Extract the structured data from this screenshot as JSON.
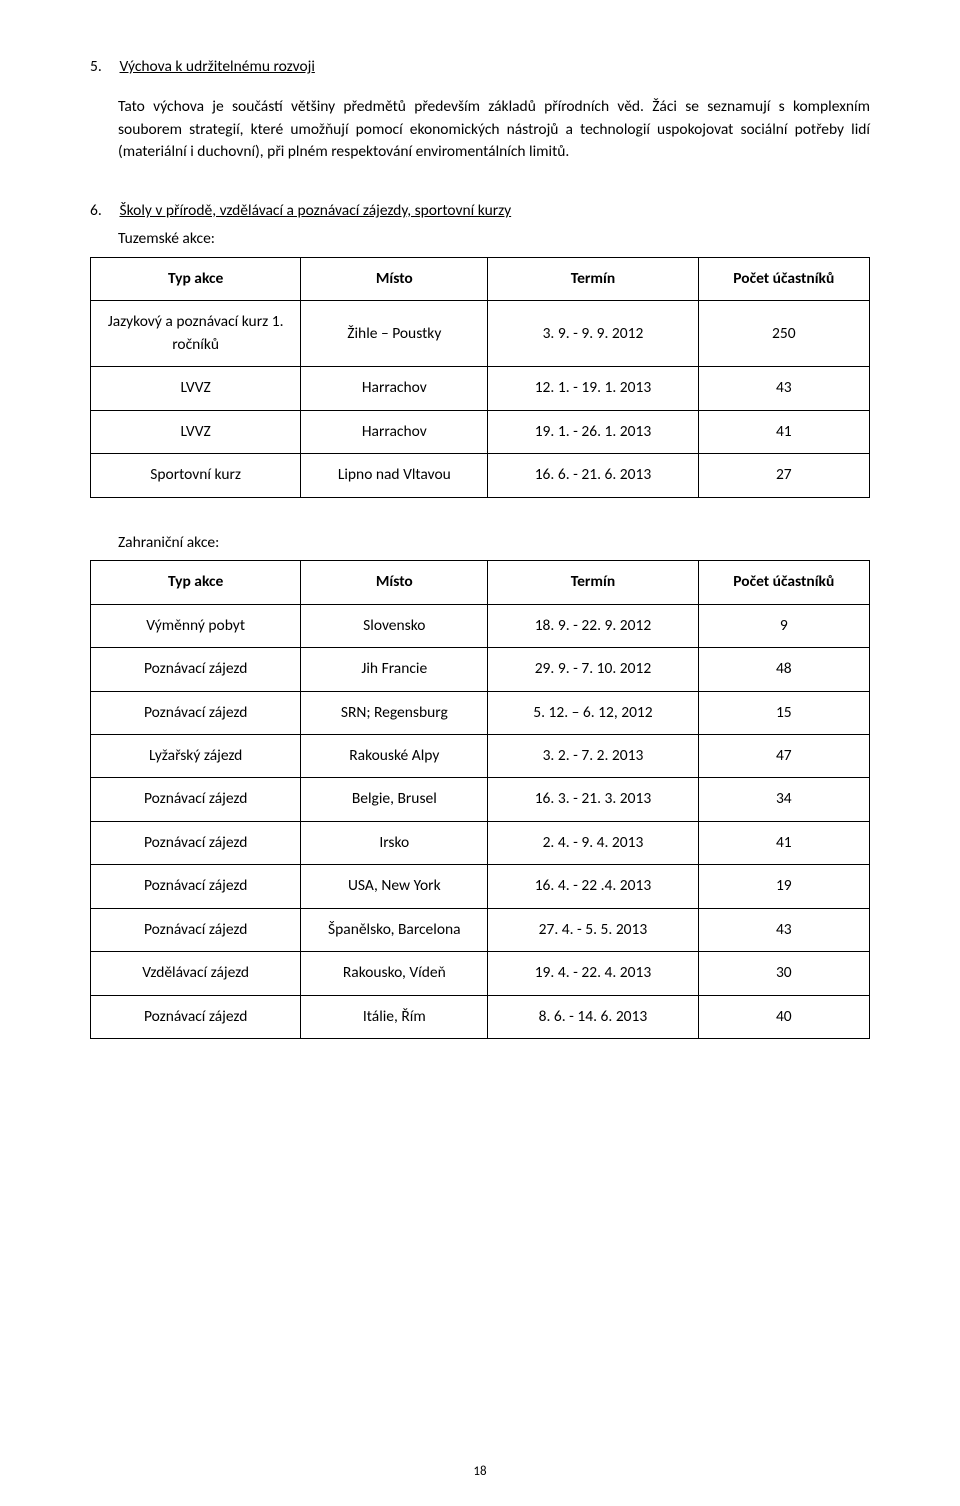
{
  "section5": {
    "num": "5.",
    "title": "Výchova k udržitelnému rozvoji",
    "para": "Tato výchova je součástí většiny předmětů především základů přírodních věd. Žáci se seznamují s komplexním souborem strategií, které umožňují pomocí ekonomických nástrojů a technologií uspokojovat sociální potřeby lidí (materiální i duchovní), při plném respektování enviromentálních limitů."
  },
  "section6": {
    "num": "6.",
    "title": "Školy v přírodě, vzdělávací a poznávací zájezdy, sportovní kurzy",
    "domesticLabel": "Tuzemské akce:",
    "foreignLabel": "Zahraniční akce:"
  },
  "table": {
    "headers": {
      "type": "Typ akce",
      "place": "Místo",
      "term": "Termín",
      "count": "Počet účastníků"
    }
  },
  "domestic": [
    {
      "type": "Jazykový a poznávací kurz 1. ročníků",
      "place": "Žihle – Poustky",
      "term": "3. 9. - 9. 9. 2012",
      "count": "250"
    },
    {
      "type": "LVVZ",
      "place": "Harrachov",
      "term": "12. 1. - 19. 1. 2013",
      "count": "43"
    },
    {
      "type": "LVVZ",
      "place": "Harrachov",
      "term": "19. 1. -  26. 1. 2013",
      "count": "41"
    },
    {
      "type": "Sportovní kurz",
      "place": "Lipno nad Vltavou",
      "term": "16. 6. - 21. 6. 2013",
      "count": "27"
    }
  ],
  "foreign": [
    {
      "type": "Výměnný pobyt",
      "place": "Slovensko",
      "term": "18. 9. - 22. 9. 2012",
      "count": "9"
    },
    {
      "type": "Poznávací zájezd",
      "place": "Jih Francie",
      "term": "29. 9. - 7. 10. 2012",
      "count": "48"
    },
    {
      "type": "Poznávací zájezd",
      "place": "SRN; Regensburg",
      "term": "5. 12. – 6. 12, 2012",
      "count": "15"
    },
    {
      "type": "Lyžařský zájezd",
      "place": "Rakouské Alpy",
      "term": "3. 2. -  7. 2. 2013",
      "count": "47"
    },
    {
      "type": "Poznávací zájezd",
      "place": "Belgie, Brusel",
      "term": "16. 3. - 21. 3. 2013",
      "count": "34"
    },
    {
      "type": "Poznávací zájezd",
      "place": "Irsko",
      "term": "2. 4. - 9. 4. 2013",
      "count": "41"
    },
    {
      "type": "Poznávací zájezd",
      "place": "USA, New York",
      "term": "16. 4. - 22 .4. 2013",
      "count": "19"
    },
    {
      "type": "Poznávací zájezd",
      "place": "Španělsko, Barcelona",
      "term": "27. 4. - 5. 5. 2013",
      "count": "43"
    },
    {
      "type": "Vzdělávací zájezd",
      "place": "Rakousko, Vídeň",
      "term": "19. 4. - 22. 4. 2013",
      "count": "30"
    },
    {
      "type": "Poznávací zájezd",
      "place": "Itálie, Řím",
      "term": "8. 6. - 14. 6. 2013",
      "count": "40"
    }
  ],
  "pageNumber": "18"
}
